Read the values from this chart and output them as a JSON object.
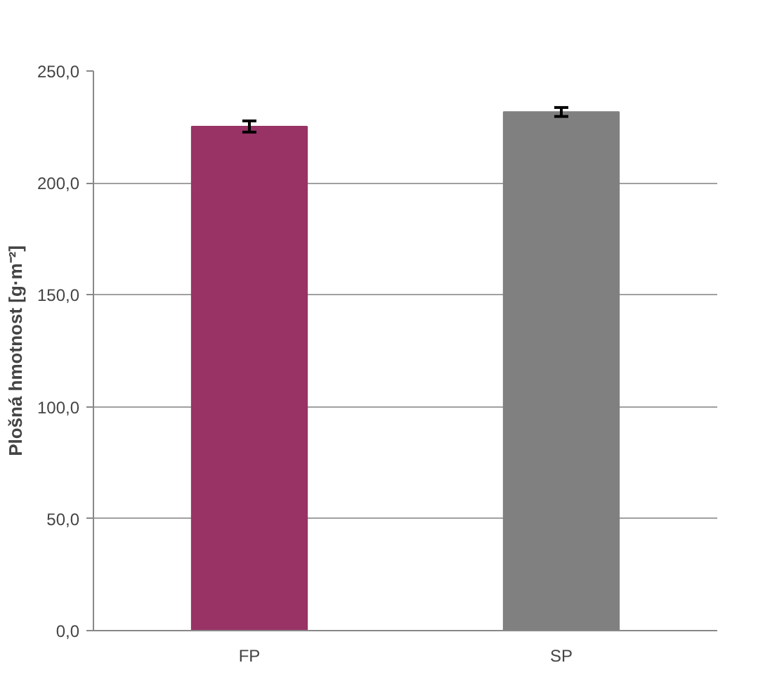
{
  "chart_data": {
    "type": "bar",
    "ylabel": "Plošná hmotnost [g·m⁻²]",
    "categories": [
      "FP",
      "SP"
    ],
    "values": [
      225.2,
      231.7
    ],
    "colors": [
      "#993366",
      "#808080"
    ],
    "errors": [
      2.5,
      2.0
    ],
    "ylim": [
      0,
      250
    ],
    "yticks": [
      {
        "value": 0,
        "label": "0,0"
      },
      {
        "value": 50,
        "label": "50,0"
      },
      {
        "value": 100,
        "label": "100,0"
      },
      {
        "value": 150,
        "label": "150,0"
      },
      {
        "value": 200,
        "label": "200,0"
      },
      {
        "value": 250,
        "label": "250,0"
      }
    ],
    "grid": "y"
  }
}
